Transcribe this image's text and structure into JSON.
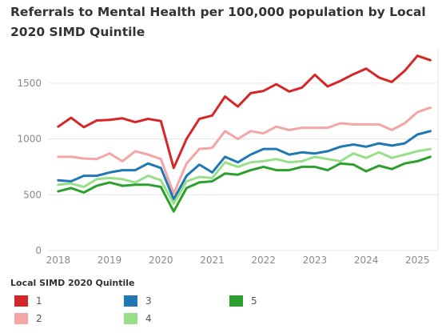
{
  "title": "Referrals to Mental Health per 100,000 population by Local 2020 SIMD Quintile",
  "legend_title": "Local SIMD 2020 Quintile",
  "chart_data": {
    "type": "line",
    "title": "Referrals to Mental Health per 100,000 population by Local 2020 SIMD Quintile",
    "xlabel": "",
    "ylabel": "",
    "x": [
      2018.0,
      2018.25,
      2018.5,
      2018.75,
      2019.0,
      2019.25,
      2019.5,
      2019.75,
      2020.0,
      2020.25,
      2020.5,
      2020.75,
      2021.0,
      2021.25,
      2021.5,
      2021.75,
      2022.0,
      2022.25,
      2022.5,
      2022.75,
      2023.0,
      2023.25,
      2023.5,
      2023.75,
      2024.0,
      2024.25,
      2024.5,
      2024.75,
      2025.0,
      2025.25
    ],
    "xlim": [
      2017.8,
      2025.4
    ],
    "x_ticks": [
      "2018",
      "2019",
      "2020",
      "2021",
      "2022",
      "2023",
      "2024",
      "2025"
    ],
    "ylim": [
      0,
      1800
    ],
    "y_ticks": [
      "0",
      "500",
      "1000",
      "1500"
    ],
    "grid": true,
    "legend_position": "bottom",
    "series": [
      {
        "name": "1",
        "color": "#d62728",
        "values": [
          1110,
          1190,
          1105,
          1165,
          1170,
          1185,
          1150,
          1180,
          1160,
          740,
          1000,
          1180,
          1210,
          1380,
          1290,
          1410,
          1430,
          1490,
          1425,
          1460,
          1575,
          1470,
          1520,
          1580,
          1630,
          1550,
          1510,
          1610,
          1745,
          1705
        ]
      },
      {
        "name": "2",
        "color": "#f4a5a5",
        "values": [
          840,
          840,
          825,
          820,
          870,
          800,
          890,
          860,
          820,
          510,
          780,
          910,
          920,
          1070,
          1000,
          1070,
          1050,
          1110,
          1080,
          1100,
          1100,
          1100,
          1140,
          1130,
          1130,
          1130,
          1080,
          1140,
          1240,
          1280
        ]
      },
      {
        "name": "3",
        "color": "#1f77b4",
        "values": [
          630,
          620,
          670,
          670,
          700,
          720,
          720,
          780,
          740,
          460,
          670,
          770,
          700,
          840,
          790,
          860,
          910,
          910,
          860,
          880,
          870,
          890,
          930,
          950,
          930,
          960,
          940,
          960,
          1040,
          1070
        ]
      },
      {
        "name": "4",
        "color": "#98df8a",
        "values": [
          590,
          600,
          570,
          640,
          650,
          640,
          610,
          670,
          630,
          420,
          620,
          660,
          650,
          790,
          750,
          790,
          800,
          820,
          790,
          800,
          840,
          820,
          800,
          870,
          830,
          880,
          830,
          860,
          890,
          910
        ]
      },
      {
        "name": "5",
        "color": "#2ca02c",
        "values": [
          530,
          560,
          520,
          580,
          610,
          580,
          590,
          590,
          570,
          350,
          560,
          610,
          620,
          690,
          680,
          720,
          750,
          720,
          720,
          750,
          750,
          720,
          780,
          770,
          710,
          760,
          730,
          780,
          800,
          840
        ]
      }
    ]
  }
}
